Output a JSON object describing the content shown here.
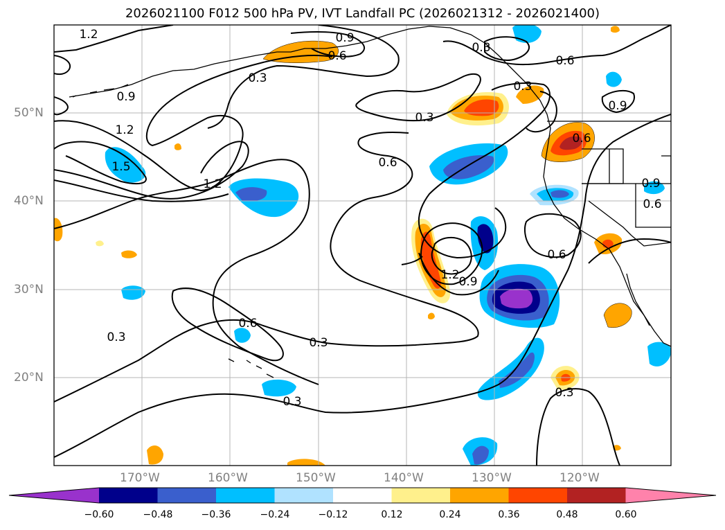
{
  "title": "2026021100 F012 500 hPa PV, IVT Landfall PC (2026021312 - 2026021400)",
  "map": {
    "lat_labels": [
      "50°N",
      "40°N",
      "30°N",
      "20°N"
    ],
    "lon_labels": [
      "170°W",
      "160°W",
      "150°W",
      "140°W",
      "130°W",
      "120°W"
    ],
    "contour_labels": [
      "1.2",
      "0.9",
      "0.6",
      "0.3",
      "0.9",
      "0.3",
      "0.3",
      "0.6",
      "1.2",
      "1.5",
      "1.2",
      "0.3",
      "0.6",
      "0.6",
      "0.9",
      "1.2",
      "0.9",
      "0.6",
      "0.6",
      "0.3",
      "0.6",
      "0.3",
      "0.3",
      "0.3",
      "0.9"
    ]
  },
  "colorbar": {
    "ticks": [
      "−0.60",
      "−0.48",
      "−0.36",
      "−0.24",
      "−0.12",
      "0.12",
      "0.24",
      "0.36",
      "0.48",
      "0.60"
    ],
    "colors": [
      "#9932cc",
      "#00008b",
      "#3a5fcd",
      "#00bfff",
      "#b0e2ff",
      "#ffffff",
      "#fff08c",
      "#ffa500",
      "#ff4500",
      "#b22222",
      "#ff82ab"
    ]
  }
}
